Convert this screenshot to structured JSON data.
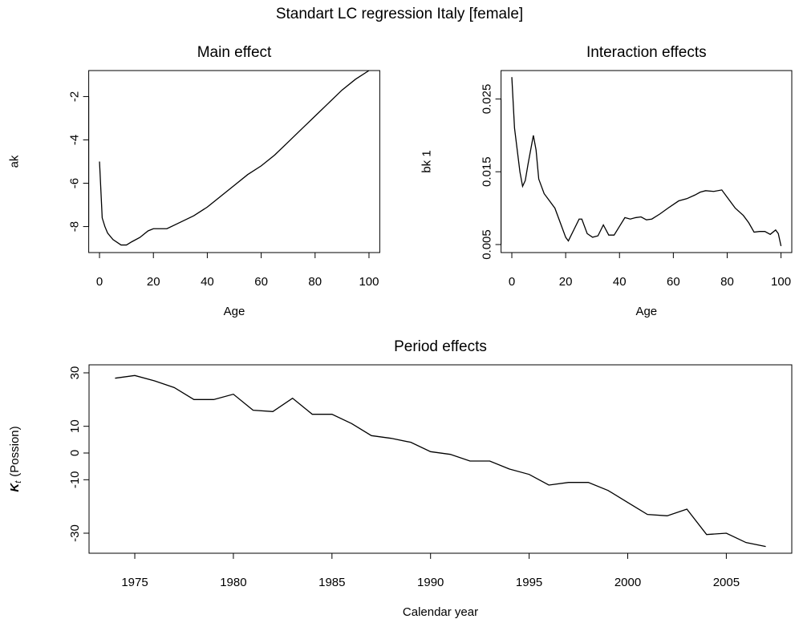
{
  "title": "Standart LC regression Italy [female]",
  "chart_data": [
    {
      "type": "line",
      "title": "Main effect",
      "x_label": "Age",
      "y_label": "ak",
      "color": "#000000",
      "x": [
        0,
        1,
        2,
        3,
        5,
        8,
        10,
        12,
        15,
        18,
        20,
        25,
        30,
        35,
        40,
        45,
        50,
        55,
        60,
        65,
        70,
        75,
        80,
        85,
        90,
        95,
        100
      ],
      "values": [
        -5.0,
        -7.6,
        -8.0,
        -8.3,
        -8.6,
        -8.85,
        -8.85,
        -8.7,
        -8.5,
        -8.2,
        -8.1,
        -8.1,
        -7.8,
        -7.5,
        -7.1,
        -6.6,
        -6.1,
        -5.6,
        -5.2,
        -4.7,
        -4.1,
        -3.5,
        -2.9,
        -2.3,
        -1.7,
        -1.2,
        -0.8
      ],
      "xlim": [
        -4,
        104
      ],
      "ylim": [
        -9.2,
        -0.8
      ],
      "xticks": [
        0,
        20,
        40,
        60,
        80,
        100
      ],
      "yticks": [
        -8,
        -6,
        -4,
        -2
      ]
    },
    {
      "type": "line",
      "title": "Interaction effects",
      "x_label": "Age",
      "y_label": "bk 1",
      "color": "#000000",
      "x": [
        0,
        1,
        2,
        3,
        4,
        5,
        6,
        7,
        8,
        9,
        10,
        12,
        14,
        16,
        18,
        20,
        21,
        23,
        25,
        26,
        28,
        30,
        32,
        34,
        36,
        38,
        40,
        42,
        44,
        46,
        48,
        50,
        52,
        55,
        58,
        60,
        62,
        65,
        68,
        70,
        72,
        75,
        78,
        80,
        83,
        86,
        88,
        90,
        92,
        94,
        96,
        98,
        99,
        100
      ],
      "values": [
        0.028,
        0.021,
        0.018,
        0.015,
        0.013,
        0.0138,
        0.016,
        0.018,
        0.02,
        0.018,
        0.014,
        0.012,
        0.011,
        0.01,
        0.008,
        0.006,
        0.0055,
        0.007,
        0.0085,
        0.0085,
        0.0065,
        0.006,
        0.0062,
        0.0077,
        0.0063,
        0.0063,
        0.0075,
        0.0087,
        0.0085,
        0.0087,
        0.0088,
        0.0084,
        0.0085,
        0.0092,
        0.01,
        0.0105,
        0.011,
        0.0113,
        0.0118,
        0.0122,
        0.0124,
        0.0123,
        0.0125,
        0.0115,
        0.01,
        0.009,
        0.008,
        0.0067,
        0.0068,
        0.0068,
        0.0064,
        0.007,
        0.0065,
        0.0048
      ],
      "xlim": [
        -4,
        104
      ],
      "ylim": [
        0.0039,
        0.0289
      ],
      "xticks": [
        0,
        20,
        40,
        60,
        80,
        100
      ],
      "yticks": [
        0.005,
        0.015,
        0.025
      ]
    },
    {
      "type": "line",
      "title": "Period effects",
      "x_label": "Calendar year",
      "y_label_symbol": "K",
      "y_label_sub": "t",
      "y_label": "(Possion)",
      "color": "#000000",
      "x": [
        1974,
        1975,
        1976,
        1977,
        1978,
        1979,
        1980,
        1981,
        1982,
        1983,
        1984,
        1985,
        1986,
        1987,
        1988,
        1989,
        1990,
        1991,
        1992,
        1993,
        1994,
        1995,
        1996,
        1997,
        1998,
        1999,
        2000,
        2001,
        2002,
        2003,
        2004,
        2005,
        2006,
        2007
      ],
      "values": [
        28,
        29,
        27,
        24.5,
        20,
        20,
        22,
        16,
        15.5,
        20.5,
        14.5,
        14.5,
        11,
        6.5,
        5.5,
        4,
        0.5,
        -0.5,
        -3,
        -3,
        -6,
        -8,
        -12,
        -11,
        -11,
        -14,
        -18.5,
        -23,
        -23.5,
        -21,
        -30.5,
        -30,
        -33.5,
        -35
      ],
      "xlim": [
        1972.68,
        2008.32
      ],
      "ylim": [
        -37.5,
        33
      ],
      "xticks": [
        1975,
        1980,
        1985,
        1990,
        1995,
        2000,
        2005
      ],
      "yticks": [
        -30,
        -10,
        0,
        10,
        30
      ]
    }
  ]
}
